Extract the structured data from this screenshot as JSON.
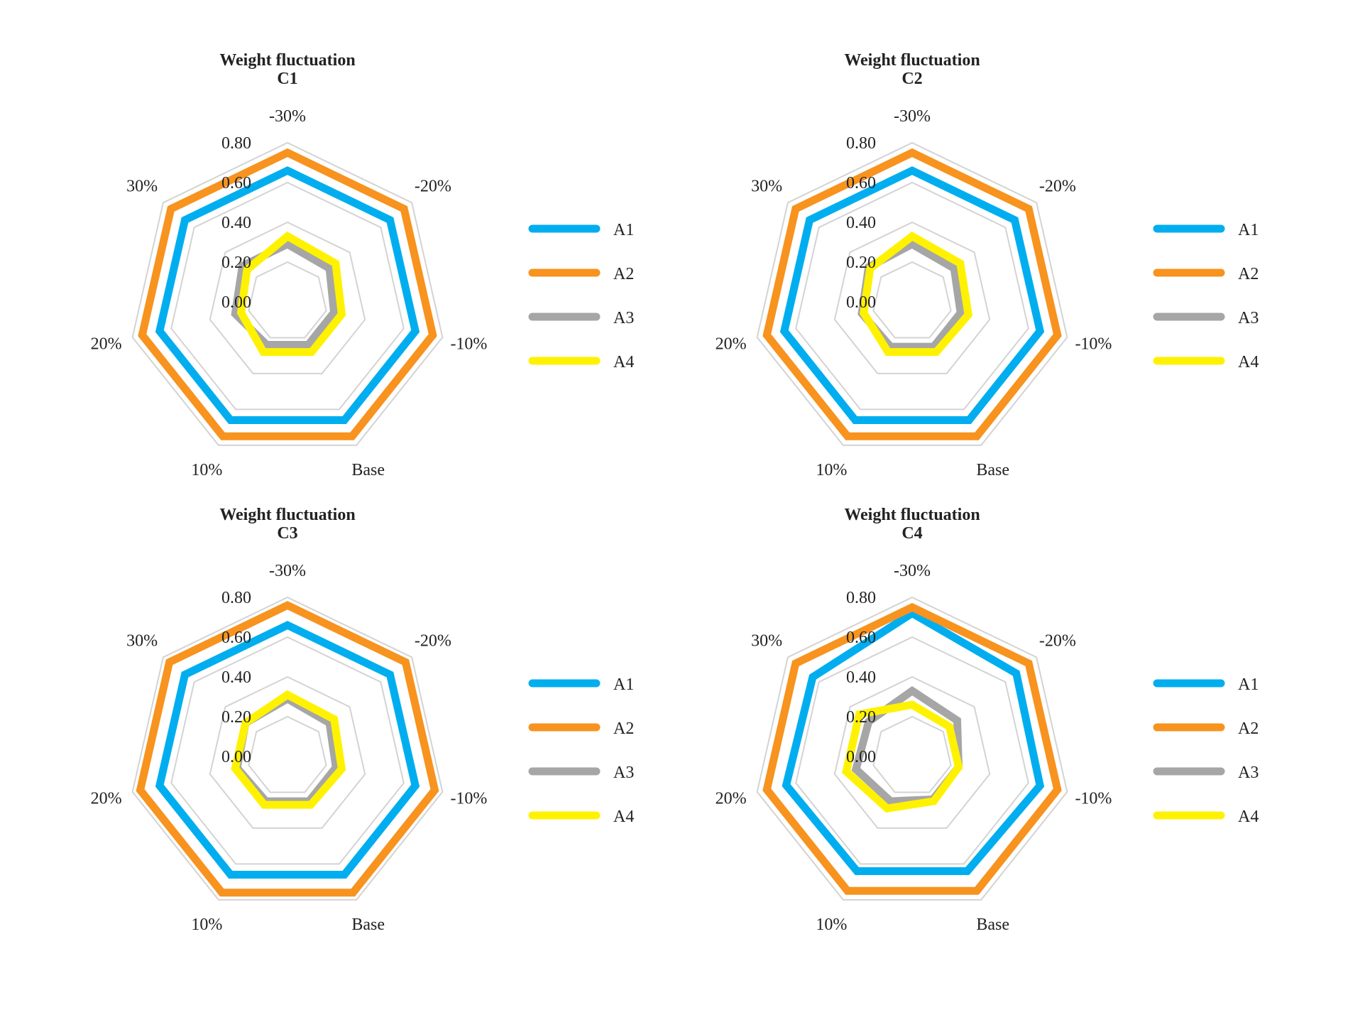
{
  "colors": {
    "A1": "#00AEEF",
    "A2": "#F7931E",
    "A3": "#A6A6A6",
    "A4": "#FFF200",
    "grid": "#D3D3D3"
  },
  "chart_data": [
    {
      "type": "radar",
      "title": "Weight fluctuation",
      "subtitle": "C1",
      "axes": [
        "-30%",
        "-20%",
        "-10%",
        "Base",
        "10%",
        "20%",
        "30%"
      ],
      "ticks": [
        "0.00",
        "0.20",
        "0.40",
        "0.60",
        "0.80"
      ],
      "ylim": [
        0,
        0.8
      ],
      "legend_position": "right",
      "series": [
        {
          "name": "A1",
          "values": [
            0.66,
            0.66,
            0.66,
            0.66,
            0.66,
            0.66,
            0.66
          ]
        },
        {
          "name": "A2",
          "values": [
            0.75,
            0.75,
            0.75,
            0.75,
            0.75,
            0.75,
            0.75
          ]
        },
        {
          "name": "A3",
          "values": [
            0.29,
            0.27,
            0.24,
            0.24,
            0.24,
            0.27,
            0.29
          ]
        },
        {
          "name": "A4",
          "values": [
            0.33,
            0.31,
            0.28,
            0.28,
            0.28,
            0.24,
            0.26
          ]
        }
      ]
    },
    {
      "type": "radar",
      "title": "Weight fluctuation",
      "subtitle": "C2",
      "axes": [
        "-30%",
        "-20%",
        "-10%",
        "Base",
        "10%",
        "20%",
        "30%"
      ],
      "ticks": [
        "0.00",
        "0.20",
        "0.40",
        "0.60",
        "0.80"
      ],
      "ylim": [
        0,
        0.8
      ],
      "legend_position": "right",
      "series": [
        {
          "name": "A1",
          "values": [
            0.66,
            0.66,
            0.66,
            0.66,
            0.66,
            0.66,
            0.66
          ]
        },
        {
          "name": "A2",
          "values": [
            0.75,
            0.75,
            0.75,
            0.75,
            0.75,
            0.75,
            0.75
          ]
        },
        {
          "name": "A3",
          "values": [
            0.29,
            0.27,
            0.25,
            0.25,
            0.25,
            0.26,
            0.28
          ]
        },
        {
          "name": "A4",
          "values": [
            0.33,
            0.31,
            0.29,
            0.28,
            0.28,
            0.25,
            0.27
          ]
        }
      ]
    },
    {
      "type": "radar",
      "title": "Weight fluctuation",
      "subtitle": "C3",
      "axes": [
        "-30%",
        "-20%",
        "-10%",
        "Base",
        "10%",
        "20%",
        "30%"
      ],
      "ticks": [
        "0.00",
        "0.20",
        "0.40",
        "0.60",
        "0.80"
      ],
      "ylim": [
        0,
        0.8
      ],
      "legend_position": "right",
      "series": [
        {
          "name": "A1",
          "values": [
            0.66,
            0.66,
            0.66,
            0.66,
            0.66,
            0.66,
            0.66
          ]
        },
        {
          "name": "A2",
          "values": [
            0.76,
            0.76,
            0.76,
            0.76,
            0.76,
            0.76,
            0.76
          ]
        },
        {
          "name": "A3",
          "values": [
            0.29,
            0.27,
            0.25,
            0.25,
            0.25,
            0.26,
            0.27
          ]
        },
        {
          "name": "A4",
          "values": [
            0.31,
            0.3,
            0.28,
            0.27,
            0.27,
            0.27,
            0.27
          ]
        }
      ]
    },
    {
      "type": "radar",
      "title": "Weight fluctuation",
      "subtitle": "C4",
      "axes": [
        "-30%",
        "-20%",
        "-10%",
        "Base",
        "10%",
        "20%",
        "30%"
      ],
      "ticks": [
        "0.00",
        "0.20",
        "0.40",
        "0.60",
        "0.80"
      ],
      "ylim": [
        0,
        0.8
      ],
      "legend_position": "right",
      "series": [
        {
          "name": "A1",
          "values": [
            0.72,
            0.67,
            0.66,
            0.64,
            0.64,
            0.65,
            0.64
          ]
        },
        {
          "name": "A2",
          "values": [
            0.75,
            0.75,
            0.75,
            0.75,
            0.75,
            0.75,
            0.75
          ]
        },
        {
          "name": "A3",
          "values": [
            0.33,
            0.29,
            0.24,
            0.24,
            0.25,
            0.29,
            0.28
          ]
        },
        {
          "name": "A4",
          "values": [
            0.26,
            0.24,
            0.24,
            0.25,
            0.29,
            0.34,
            0.34
          ]
        }
      ]
    }
  ]
}
